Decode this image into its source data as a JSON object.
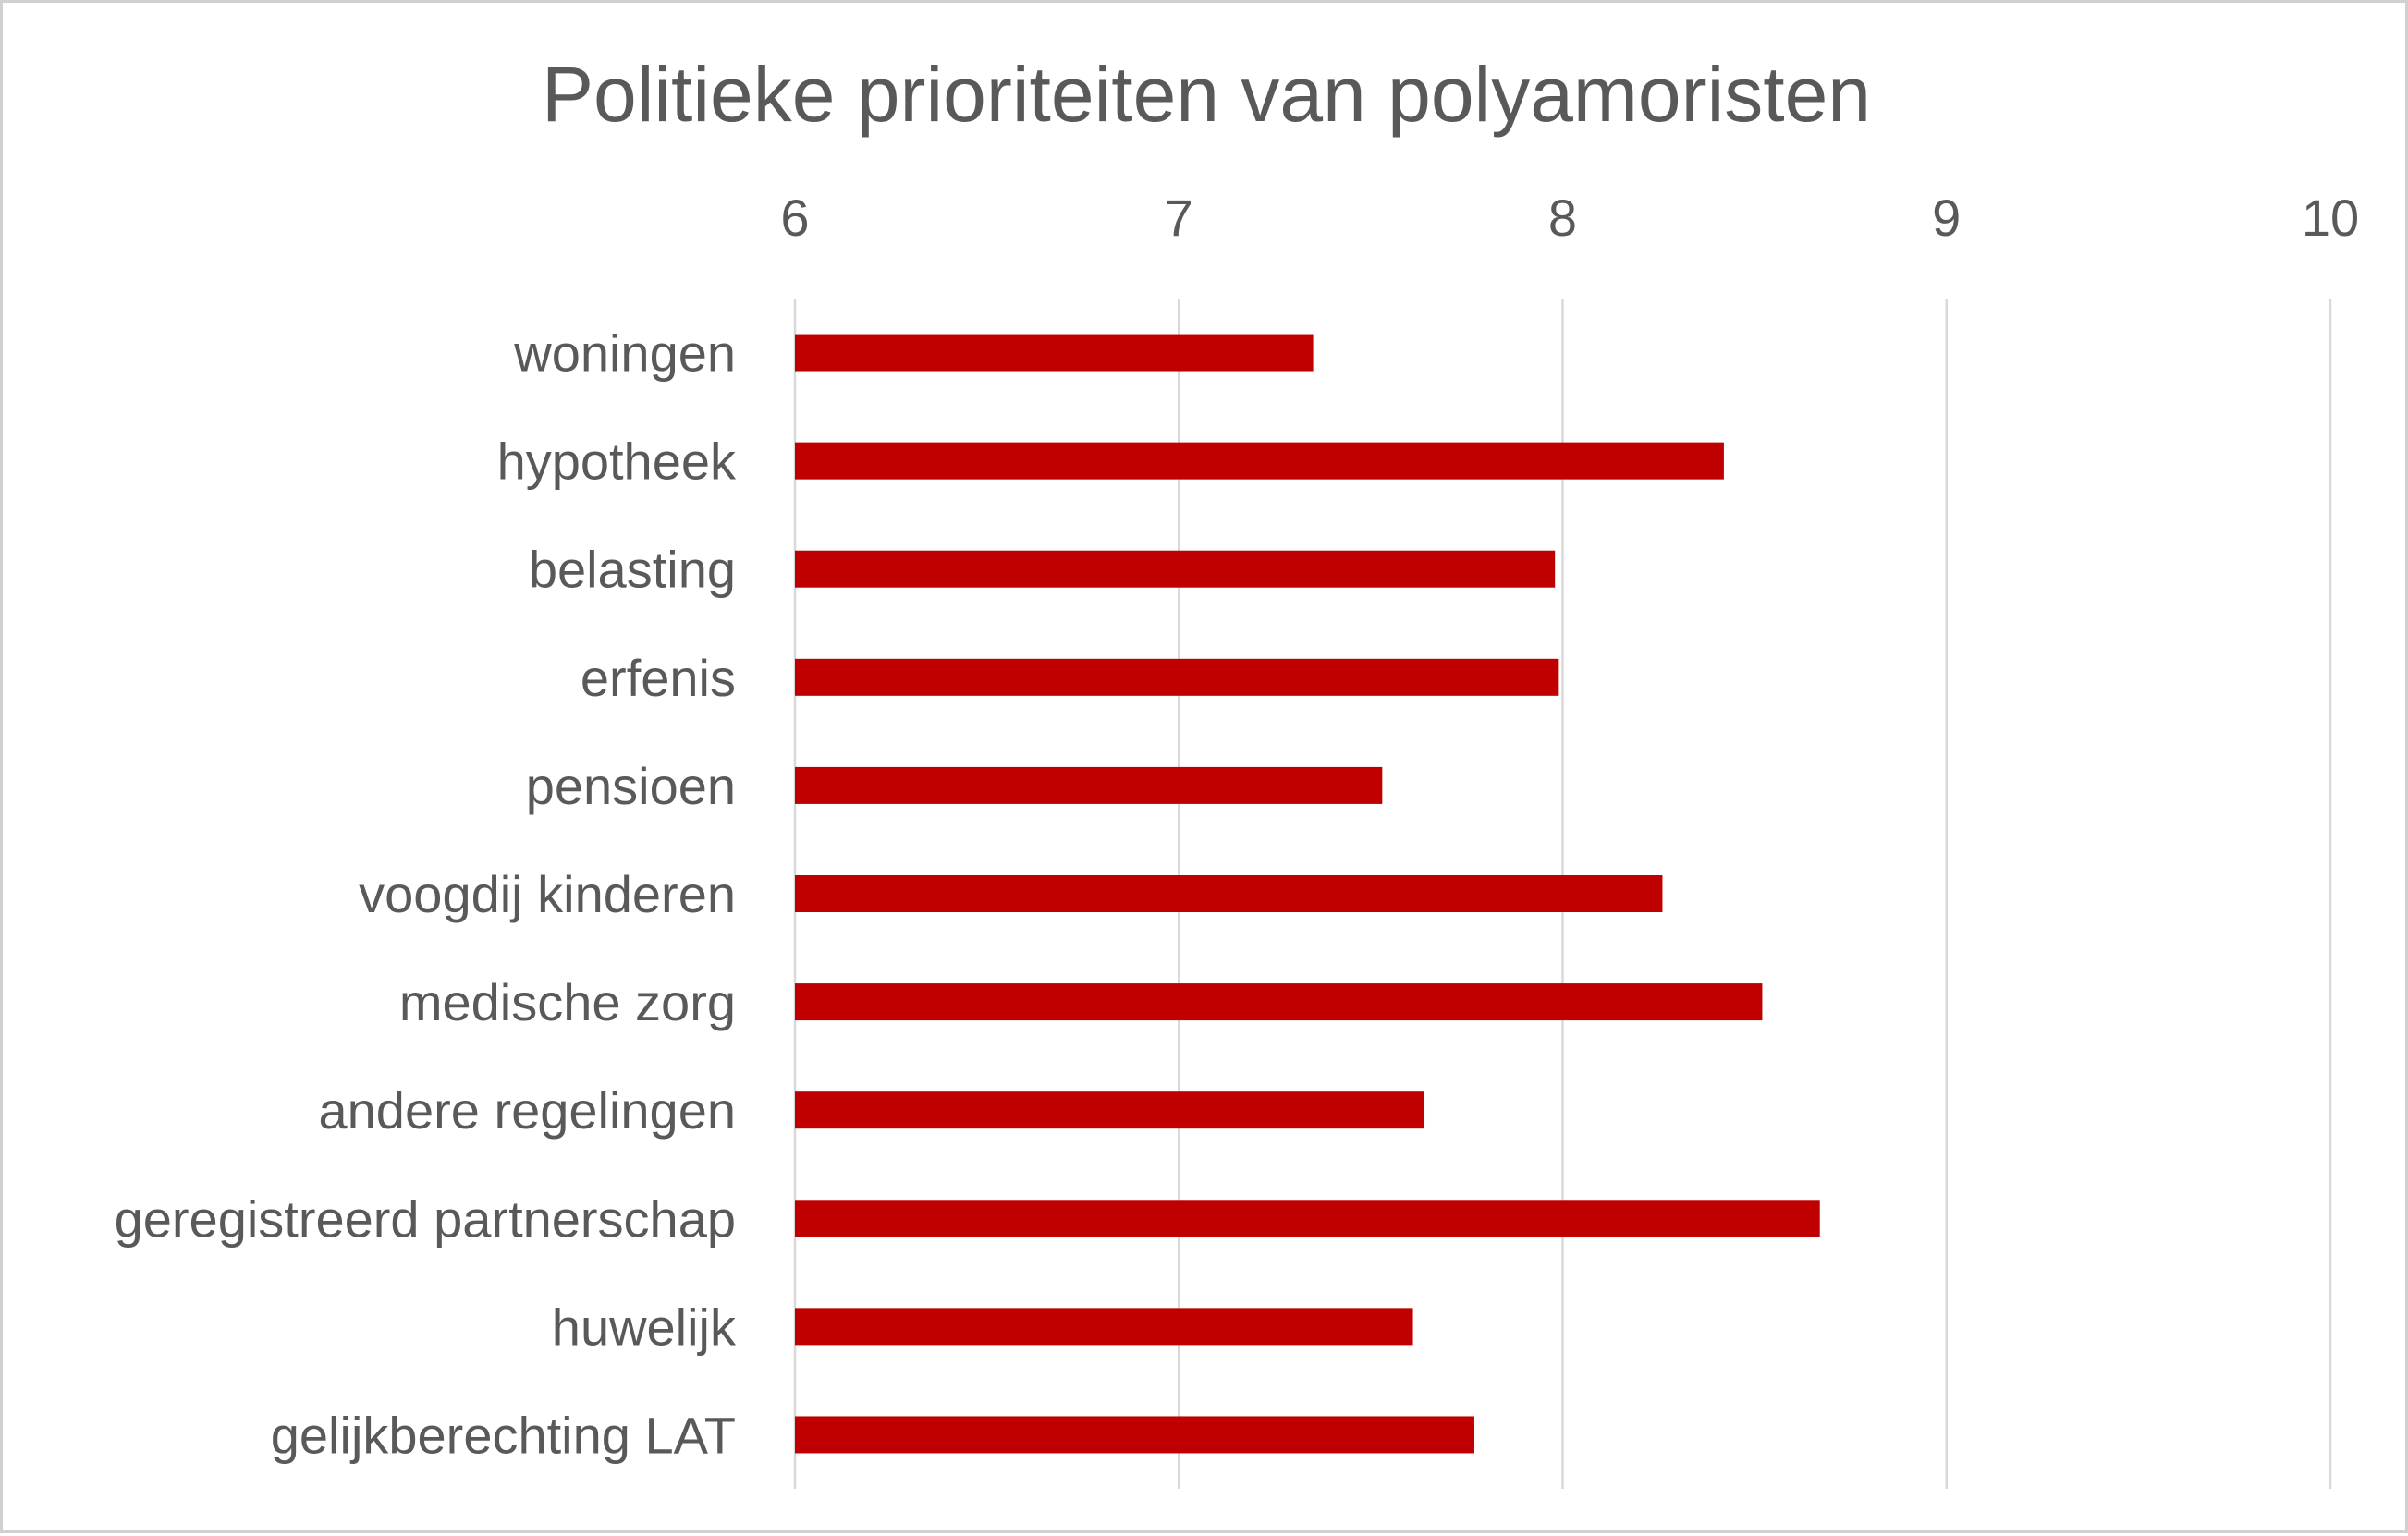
{
  "chart_data": {
    "type": "bar",
    "orientation": "horizontal",
    "title": "Politieke prioriteiten van polyamoristen",
    "xlabel": "",
    "ylabel": "",
    "xlim": [
      6,
      10
    ],
    "x_ticks": [
      "6",
      "7",
      "8",
      "9",
      "10"
    ],
    "x_axis_position": "top",
    "grid": true,
    "legend": "none",
    "categories": [
      "woningen",
      "hypotheek",
      "belasting",
      "erfenis",
      "pensioen",
      "voogdij kinderen",
      "medische zorg",
      "andere regelingen",
      "geregistreerd partnerschap",
      "huwelijk",
      "gelijkberechting LAT"
    ],
    "values": [
      7.35,
      8.42,
      7.98,
      7.99,
      7.53,
      8.26,
      8.52,
      7.64,
      8.67,
      7.61,
      7.77
    ],
    "colors": {
      "bar": "#C00000",
      "text": "#595959",
      "grid": "#D9D9D9"
    }
  }
}
